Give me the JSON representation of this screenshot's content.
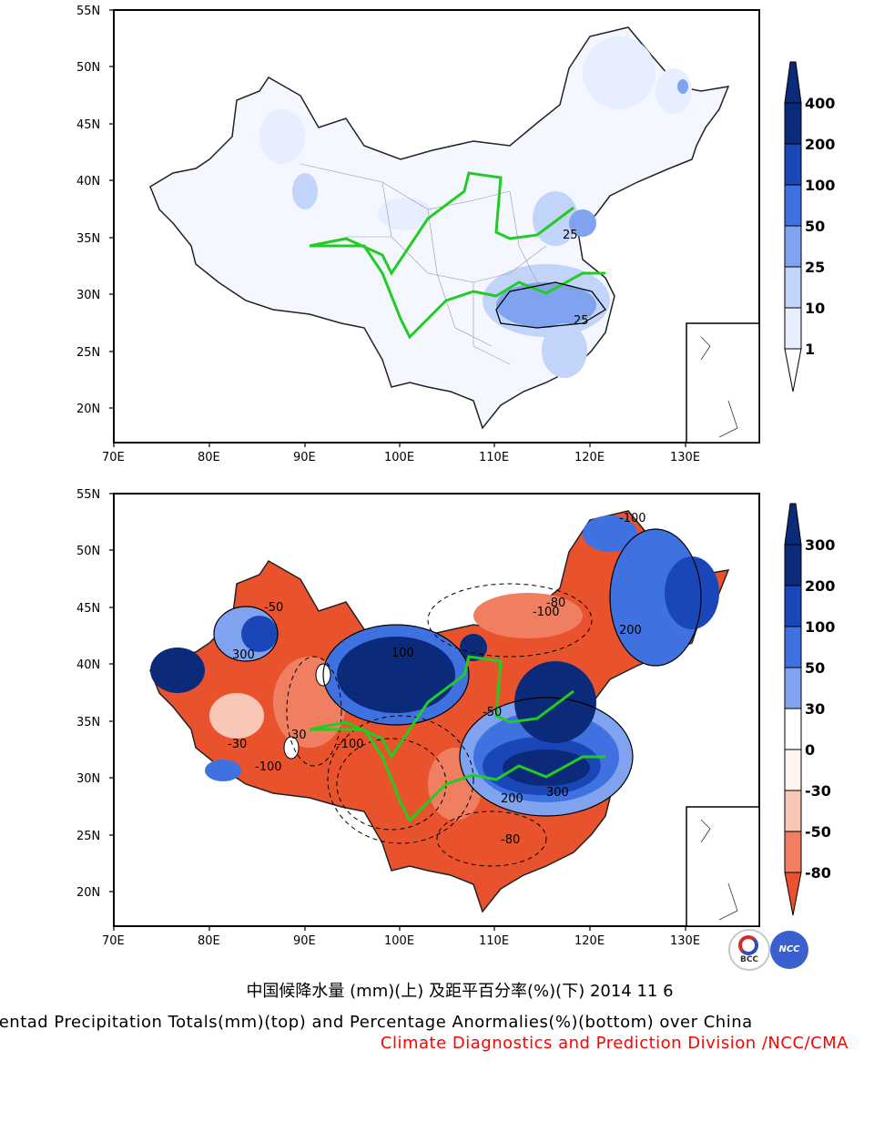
{
  "colors": {
    "top_scale": [
      "#ffffff",
      "#e6eeff",
      "#c2d4fa",
      "#7fa3ee",
      "#3f71e0",
      "#1b46b8",
      "#0b2a7a"
    ],
    "bottom_scale": [
      "#e8532e",
      "#f07f62",
      "#f9c7b8",
      "#fff4f0",
      "#ffffff",
      "#c9d8fa",
      "#7fa3ee",
      "#3f71e0",
      "#1b46b8",
      "#0b2a7a"
    ],
    "river": "#22cc22"
  },
  "maps": {
    "top": {
      "lat_labels": [
        "55N",
        "50N",
        "45N",
        "40N",
        "35N",
        "30N",
        "25N",
        "20N"
      ],
      "lon_labels": [
        "70E",
        "80E",
        "90E",
        "100E",
        "110E",
        "120E",
        "130E"
      ],
      "colorbar_labels": [
        "400",
        "200",
        "100",
        "50",
        "25",
        "10",
        "1"
      ],
      "contour_labels": [
        "25",
        "25"
      ]
    },
    "bottom": {
      "lat_labels": [
        "55N",
        "50N",
        "45N",
        "40N",
        "35N",
        "30N",
        "25N",
        "20N"
      ],
      "lon_labels": [
        "70E",
        "80E",
        "90E",
        "100E",
        "110E",
        "120E",
        "130E"
      ],
      "colorbar_labels": [
        "300",
        "200",
        "100",
        "50",
        "30",
        "0",
        "-30",
        "-50",
        "-80"
      ],
      "contour_labels": [
        "-100",
        "300",
        "-50",
        "200",
        "-80",
        "-100",
        "-30",
        "200",
        "-100",
        "100",
        "-50",
        "-80",
        "30",
        "300",
        "-100"
      ]
    }
  },
  "title": {
    "chinese": "中国候降水量 (mm)(上) 及距平百分率(%)(下) 2014 11 6",
    "english": "Pentad Precipitation Totals(mm)(top) and Percentage Anormalies(%)(bottom) over China",
    "division": "Climate Diagnostics and Prediction Division /NCC/CMA"
  },
  "logos": {
    "bcc": "BCC",
    "ncc": "NCC"
  }
}
